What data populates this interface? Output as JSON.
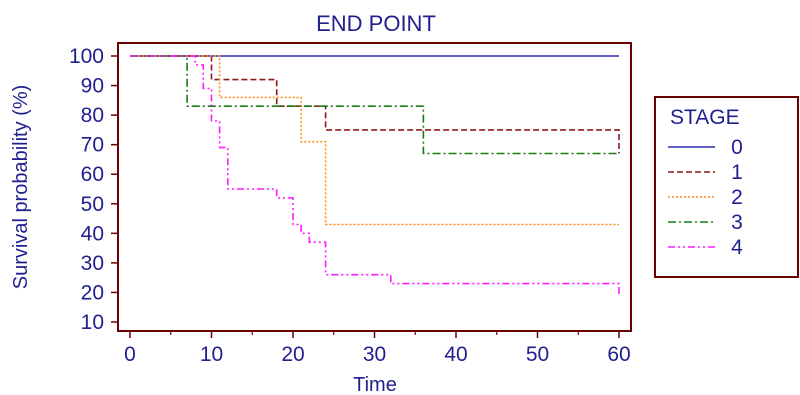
{
  "chart_data": {
    "type": "line",
    "subtype": "kaplan-meier step curves",
    "title": "END POINT",
    "xlabel": "Time",
    "ylabel": "Survival probability (%)",
    "xlim": [
      0,
      60
    ],
    "ylim": [
      7,
      103
    ],
    "xticks": [
      "0",
      "10",
      "20",
      "30",
      "40",
      "50",
      "60"
    ],
    "yticks": [
      "10",
      "20",
      "30",
      "40",
      "50",
      "60",
      "70",
      "80",
      "90",
      "100"
    ],
    "xtick_values": [
      0,
      10,
      20,
      30,
      40,
      50,
      60
    ],
    "ytick_values": [
      10,
      20,
      30,
      40,
      50,
      60,
      70,
      80,
      90,
      100
    ],
    "grid": false,
    "legend": {
      "title": "STAGE",
      "placement": "right"
    },
    "series": [
      {
        "name": "0",
        "color": "#2b2bb0",
        "dash": "solid",
        "points": [
          [
            0,
            100
          ],
          [
            60,
            100
          ]
        ]
      },
      {
        "name": "1",
        "color": "#8b1a1a",
        "dash": "dashed",
        "points": [
          [
            0,
            100
          ],
          [
            10,
            100
          ],
          [
            10,
            92
          ],
          [
            18,
            92
          ],
          [
            18,
            83
          ],
          [
            24,
            83
          ],
          [
            24,
            75
          ],
          [
            60,
            75
          ],
          [
            60,
            67
          ]
        ]
      },
      {
        "name": "2",
        "color": "#ff8c1a",
        "dash": "dotted",
        "points": [
          [
            0,
            100
          ],
          [
            11,
            100
          ],
          [
            11,
            86
          ],
          [
            21,
            86
          ],
          [
            21,
            71
          ],
          [
            24,
            71
          ],
          [
            24,
            43
          ],
          [
            60,
            43
          ]
        ]
      },
      {
        "name": "3",
        "color": "#1a7a1a",
        "dash": "dashdot",
        "points": [
          [
            0,
            100
          ],
          [
            7,
            100
          ],
          [
            7,
            83
          ],
          [
            36,
            83
          ],
          [
            36,
            67
          ],
          [
            60,
            67
          ]
        ]
      },
      {
        "name": "4",
        "color": "#ff1aff",
        "dash": "dashdotdot",
        "points": [
          [
            0,
            100
          ],
          [
            8,
            100
          ],
          [
            8,
            97
          ],
          [
            9,
            97
          ],
          [
            9,
            89
          ],
          [
            10,
            89
          ],
          [
            10,
            78
          ],
          [
            11,
            78
          ],
          [
            11,
            69
          ],
          [
            12,
            69
          ],
          [
            12,
            55
          ],
          [
            18,
            55
          ],
          [
            18,
            52
          ],
          [
            20,
            52
          ],
          [
            20,
            43
          ],
          [
            21,
            43
          ],
          [
            21,
            40
          ],
          [
            22,
            40
          ],
          [
            22,
            37
          ],
          [
            24,
            37
          ],
          [
            24,
            26
          ],
          [
            32,
            26
          ],
          [
            32,
            23
          ],
          [
            60,
            23
          ],
          [
            60,
            19
          ]
        ]
      }
    ]
  }
}
